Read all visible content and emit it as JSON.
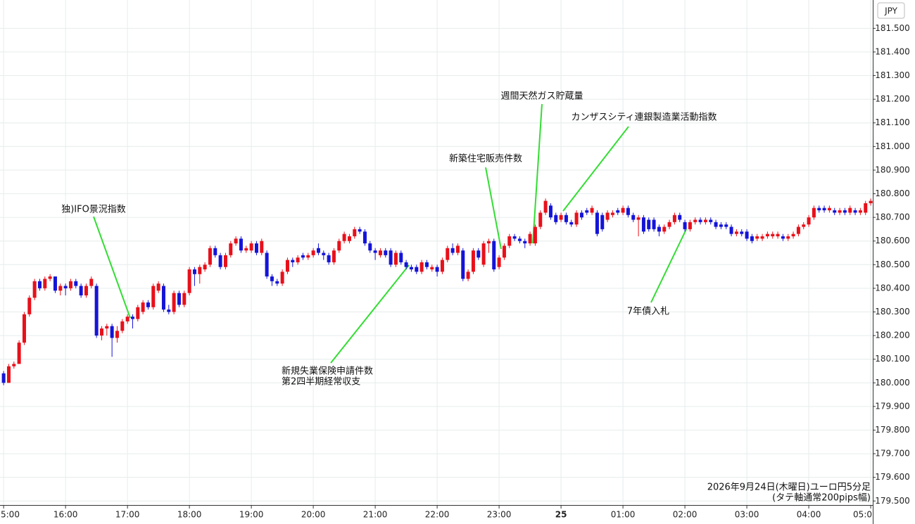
{
  "chart_data": {
    "type": "candlestick",
    "currency": "JPY",
    "up_color": "#e8101a",
    "down_color": "#1414d8",
    "ylim": [
      179.48,
      181.62
    ],
    "yticks": [
      {
        "value": 179.5,
        "label": "179.500"
      },
      {
        "value": 179.6,
        "label": "179.600"
      },
      {
        "value": 179.7,
        "label": "179.700"
      },
      {
        "value": 179.8,
        "label": "179.800"
      },
      {
        "value": 179.9,
        "label": "179.900"
      },
      {
        "value": 180.0,
        "label": "180.000"
      },
      {
        "value": 180.1,
        "label": "180.100"
      },
      {
        "value": 180.2,
        "label": "180.200"
      },
      {
        "value": 180.3,
        "label": "180.300"
      },
      {
        "value": 180.4,
        "label": "180.400"
      },
      {
        "value": 180.5,
        "label": "180.500"
      },
      {
        "value": 180.6,
        "label": "180.600"
      },
      {
        "value": 180.7,
        "label": "180.700"
      },
      {
        "value": 180.8,
        "label": "180.800"
      },
      {
        "value": 180.9,
        "label": "180.900"
      },
      {
        "value": 181.0,
        "label": "181.000"
      },
      {
        "value": 181.1,
        "label": "181.100"
      },
      {
        "value": 181.2,
        "label": "181.200"
      },
      {
        "value": 181.3,
        "label": "181.300"
      },
      {
        "value": 181.4,
        "label": "181.400"
      },
      {
        "value": 181.5,
        "label": "181.500"
      }
    ],
    "xlim": [
      -0.7,
      168.4
    ],
    "xticks": [
      {
        "value": 0,
        "label": "5:00"
      },
      {
        "value": 12,
        "label": "16:00"
      },
      {
        "value": 24,
        "label": "17:00"
      },
      {
        "value": 36,
        "label": "18:00"
      },
      {
        "value": 48,
        "label": "19:00"
      },
      {
        "value": 60,
        "label": "20:00"
      },
      {
        "value": 72,
        "label": "21:00"
      },
      {
        "value": 84,
        "label": "22:00"
      },
      {
        "value": 96,
        "label": "23:00"
      },
      {
        "value": 108,
        "label": "25"
      },
      {
        "value": 120,
        "label": "01:00"
      },
      {
        "value": 132,
        "label": "02:00"
      },
      {
        "value": 144,
        "label": "03:00"
      },
      {
        "value": 156,
        "label": "04:00"
      },
      {
        "value": 168,
        "label": "05:0"
      }
    ],
    "grid": true,
    "ohlc": [
      [
        180.04,
        180.05,
        179.99,
        180.0
      ],
      [
        180.0,
        180.08,
        180.0,
        180.07
      ],
      [
        180.07,
        180.09,
        180.06,
        180.08
      ],
      [
        180.08,
        180.18,
        180.08,
        180.17
      ],
      [
        180.17,
        180.3,
        180.16,
        180.29
      ],
      [
        180.29,
        180.37,
        180.28,
        180.36
      ],
      [
        180.36,
        180.44,
        180.35,
        180.43
      ],
      [
        180.43,
        180.44,
        180.39,
        180.4
      ],
      [
        180.4,
        180.45,
        180.39,
        180.44
      ],
      [
        180.44,
        180.46,
        180.43,
        180.45
      ],
      [
        180.45,
        180.45,
        180.38,
        180.39
      ],
      [
        180.39,
        180.42,
        180.37,
        180.41
      ],
      [
        180.41,
        180.42,
        180.37,
        180.4
      ],
      [
        180.4,
        180.44,
        180.39,
        180.43
      ],
      [
        180.43,
        180.44,
        180.4,
        180.41
      ],
      [
        180.41,
        180.42,
        180.36,
        180.37
      ],
      [
        180.37,
        180.42,
        180.36,
        180.41
      ],
      [
        180.41,
        180.45,
        180.4,
        180.44
      ],
      [
        180.41,
        180.42,
        180.19,
        180.2
      ],
      [
        180.2,
        180.24,
        180.18,
        180.23
      ],
      [
        180.23,
        180.25,
        180.2,
        180.24
      ],
      [
        180.24,
        180.25,
        180.11,
        180.19
      ],
      [
        180.19,
        180.24,
        180.17,
        180.22
      ],
      [
        180.22,
        180.27,
        180.21,
        180.26
      ],
      [
        180.26,
        180.29,
        180.25,
        180.28
      ],
      [
        180.28,
        180.29,
        180.23,
        180.27
      ],
      [
        180.27,
        180.33,
        180.26,
        180.32
      ],
      [
        180.3,
        180.35,
        180.29,
        180.34
      ],
      [
        180.34,
        180.35,
        180.31,
        180.32
      ],
      [
        180.32,
        180.42,
        180.31,
        180.41
      ],
      [
        180.39,
        180.43,
        180.38,
        180.42
      ],
      [
        180.41,
        180.42,
        180.3,
        180.31
      ],
      [
        180.31,
        180.33,
        180.29,
        180.3
      ],
      [
        180.3,
        180.39,
        180.29,
        180.38
      ],
      [
        180.38,
        180.39,
        180.32,
        180.33
      ],
      [
        180.33,
        180.39,
        180.32,
        180.38
      ],
      [
        180.38,
        180.49,
        180.37,
        180.48
      ],
      [
        180.48,
        180.49,
        180.41,
        180.46
      ],
      [
        180.46,
        180.5,
        180.42,
        180.49
      ],
      [
        180.48,
        180.51,
        180.47,
        180.5
      ],
      [
        180.5,
        180.58,
        180.49,
        180.57
      ],
      [
        180.57,
        180.58,
        180.53,
        180.54
      ],
      [
        180.54,
        180.55,
        180.48,
        180.49
      ],
      [
        180.49,
        180.55,
        180.48,
        180.54
      ],
      [
        180.54,
        180.6,
        180.53,
        180.59
      ],
      [
        180.59,
        180.62,
        180.58,
        180.61
      ],
      [
        180.61,
        180.62,
        180.55,
        180.56
      ],
      [
        180.56,
        180.58,
        180.55,
        180.57
      ],
      [
        180.56,
        180.6,
        180.55,
        180.59
      ],
      [
        180.59,
        180.6,
        180.54,
        180.55
      ],
      [
        180.55,
        180.61,
        180.54,
        180.6
      ],
      [
        180.55,
        180.56,
        180.44,
        180.45
      ],
      [
        180.45,
        180.46,
        180.41,
        180.43
      ],
      [
        180.43,
        180.44,
        180.41,
        180.42
      ],
      [
        180.42,
        180.48,
        180.41,
        180.47
      ],
      [
        180.47,
        180.53,
        180.46,
        180.52
      ],
      [
        180.52,
        180.53,
        180.49,
        180.51
      ],
      [
        180.51,
        180.54,
        180.5,
        180.53
      ],
      [
        180.54,
        180.55,
        180.52,
        180.53
      ],
      [
        180.53,
        180.55,
        180.52,
        180.54
      ],
      [
        180.54,
        180.57,
        180.53,
        180.56
      ],
      [
        180.57,
        180.59,
        180.54,
        180.55
      ],
      [
        180.55,
        180.56,
        180.52,
        180.54
      ],
      [
        180.54,
        180.55,
        180.5,
        180.51
      ],
      [
        180.51,
        180.57,
        180.5,
        180.56
      ],
      [
        180.56,
        180.61,
        180.55,
        180.6
      ],
      [
        180.6,
        180.64,
        180.59,
        180.63
      ],
      [
        180.6,
        180.63,
        180.59,
        180.62
      ],
      [
        180.62,
        180.66,
        180.61,
        180.65
      ],
      [
        180.65,
        180.66,
        180.63,
        180.64
      ],
      [
        180.64,
        180.65,
        180.58,
        180.59
      ],
      [
        180.59,
        180.6,
        180.55,
        180.56
      ],
      [
        180.56,
        180.57,
        180.52,
        180.55
      ],
      [
        180.54,
        180.57,
        180.53,
        180.56
      ],
      [
        180.56,
        180.57,
        180.53,
        180.54
      ],
      [
        180.56,
        180.57,
        180.49,
        180.5
      ],
      [
        180.5,
        180.56,
        180.49,
        180.55
      ],
      [
        180.55,
        180.56,
        180.5,
        180.51
      ],
      [
        180.51,
        180.52,
        180.48,
        180.49
      ],
      [
        180.49,
        180.5,
        180.47,
        180.48
      ],
      [
        180.49,
        180.5,
        180.46,
        180.47
      ],
      [
        180.47,
        180.52,
        180.46,
        180.51
      ],
      [
        180.51,
        180.52,
        180.48,
        180.49
      ],
      [
        180.48,
        180.5,
        180.47,
        180.49
      ],
      [
        180.49,
        180.5,
        180.45,
        180.47
      ],
      [
        180.47,
        180.53,
        180.46,
        180.52
      ],
      [
        180.52,
        180.58,
        180.51,
        180.57
      ],
      [
        180.57,
        180.59,
        180.54,
        180.55
      ],
      [
        180.55,
        180.59,
        180.54,
        180.58
      ],
      [
        180.56,
        180.57,
        180.43,
        180.44
      ],
      [
        180.44,
        180.48,
        180.43,
        180.47
      ],
      [
        180.47,
        180.57,
        180.46,
        180.56
      ],
      [
        180.56,
        180.57,
        180.52,
        180.53
      ],
      [
        180.5,
        180.6,
        180.49,
        180.59
      ],
      [
        180.59,
        180.61,
        180.55,
        180.6
      ],
      [
        180.6,
        180.61,
        180.47,
        180.48
      ],
      [
        180.49,
        180.54,
        180.48,
        180.53
      ],
      [
        180.53,
        180.59,
        180.52,
        180.58
      ],
      [
        180.58,
        180.63,
        180.57,
        180.62
      ],
      [
        180.62,
        180.63,
        180.6,
        180.61
      ],
      [
        180.61,
        180.62,
        180.59,
        180.6
      ],
      [
        180.6,
        180.61,
        180.57,
        180.59
      ],
      [
        180.59,
        180.64,
        180.58,
        180.63
      ],
      [
        180.59,
        180.67,
        180.58,
        180.66
      ],
      [
        180.66,
        180.73,
        180.65,
        180.72
      ],
      [
        180.72,
        180.78,
        180.71,
        180.77
      ],
      [
        180.75,
        180.76,
        180.69,
        180.7
      ],
      [
        180.71,
        180.72,
        180.67,
        180.68
      ],
      [
        180.69,
        180.72,
        180.68,
        180.71
      ],
      [
        180.71,
        180.72,
        180.67,
        180.68
      ],
      [
        180.68,
        180.69,
        180.66,
        180.67
      ],
      [
        180.67,
        180.73,
        180.66,
        180.72
      ],
      [
        180.72,
        180.73,
        180.69,
        180.7
      ],
      [
        180.73,
        180.74,
        180.71,
        180.72
      ],
      [
        180.72,
        180.75,
        180.71,
        180.74
      ],
      [
        180.72,
        180.73,
        180.62,
        180.63
      ],
      [
        180.71,
        180.72,
        180.64,
        180.65
      ],
      [
        180.69,
        180.73,
        180.68,
        180.72
      ],
      [
        180.71,
        180.73,
        180.7,
        180.72
      ],
      [
        180.73,
        180.74,
        180.71,
        180.72
      ],
      [
        180.72,
        180.75,
        180.71,
        180.74
      ],
      [
        180.74,
        180.75,
        180.7,
        180.71
      ],
      [
        180.71,
        180.72,
        180.68,
        180.69
      ],
      [
        180.69,
        180.71,
        180.62,
        180.7
      ],
      [
        180.7,
        180.71,
        180.63,
        180.64
      ],
      [
        180.69,
        180.7,
        180.64,
        180.65
      ],
      [
        180.69,
        180.7,
        180.64,
        180.65
      ],
      [
        180.66,
        180.67,
        180.62,
        180.64
      ],
      [
        180.64,
        180.67,
        180.63,
        180.66
      ],
      [
        180.66,
        180.69,
        180.65,
        180.68
      ],
      [
        180.68,
        180.72,
        180.67,
        180.71
      ],
      [
        180.71,
        180.72,
        180.68,
        180.69
      ],
      [
        180.68,
        180.69,
        180.64,
        180.65
      ],
      [
        180.65,
        180.69,
        180.64,
        180.68
      ],
      [
        180.68,
        180.7,
        180.67,
        180.69
      ],
      [
        180.69,
        180.7,
        180.67,
        180.68
      ],
      [
        180.68,
        180.7,
        180.67,
        180.69
      ],
      [
        180.69,
        180.7,
        180.67,
        180.68
      ],
      [
        180.68,
        180.69,
        180.65,
        180.66
      ],
      [
        180.67,
        180.68,
        180.65,
        180.66
      ],
      [
        180.67,
        180.68,
        180.65,
        180.66
      ],
      [
        180.66,
        180.67,
        180.62,
        180.63
      ],
      [
        180.63,
        180.65,
        180.62,
        180.64
      ],
      [
        180.64,
        180.65,
        180.62,
        180.63
      ],
      [
        180.64,
        180.65,
        180.6,
        180.61
      ],
      [
        180.62,
        180.63,
        180.59,
        180.6
      ],
      [
        180.61,
        180.63,
        180.6,
        180.62
      ],
      [
        180.61,
        180.63,
        180.6,
        180.62
      ],
      [
        180.62,
        180.64,
        180.61,
        180.63
      ],
      [
        180.62,
        180.64,
        180.61,
        180.63
      ],
      [
        180.62,
        180.64,
        180.61,
        180.63
      ],
      [
        180.62,
        180.63,
        180.6,
        180.61
      ],
      [
        180.61,
        180.63,
        180.6,
        180.62
      ],
      [
        180.62,
        180.64,
        180.61,
        180.63
      ],
      [
        180.63,
        180.67,
        180.62,
        180.66
      ],
      [
        180.66,
        180.68,
        180.65,
        180.67
      ],
      [
        180.67,
        180.71,
        180.66,
        180.7
      ],
      [
        180.7,
        180.75,
        180.69,
        180.74
      ],
      [
        180.74,
        180.75,
        180.72,
        180.73
      ],
      [
        180.74,
        180.75,
        180.72,
        180.73
      ],
      [
        180.73,
        180.75,
        180.72,
        180.74
      ],
      [
        180.73,
        180.74,
        180.71,
        180.72
      ],
      [
        180.72,
        180.74,
        180.71,
        180.73
      ],
      [
        180.73,
        180.74,
        180.71,
        180.72
      ],
      [
        180.72,
        180.75,
        180.71,
        180.74
      ],
      [
        180.73,
        180.74,
        180.71,
        180.72
      ],
      [
        180.72,
        180.74,
        180.71,
        180.73
      ],
      [
        180.72,
        180.77,
        180.71,
        180.76
      ],
      [
        180.76,
        180.78,
        180.75,
        180.77
      ]
    ],
    "annotations": [
      {
        "lines": [
          "独)IFO景況指数"
        ]
      },
      {
        "lines": [
          "新規失業保険申請件数",
          "第2四半期経常収支"
        ]
      },
      {
        "lines": [
          "新築住宅販売件数"
        ]
      },
      {
        "lines": [
          "週間天然ガス貯蔵量"
        ]
      },
      {
        "lines": [
          "カンザスシティ連銀製造業活動指数"
        ]
      },
      {
        "lines": [
          "7年債入札"
        ]
      }
    ],
    "caption": [
      "2026年9月24日(木曜日)ユーロ円5分足",
      "(タテ軸通常200pips幅)"
    ]
  }
}
